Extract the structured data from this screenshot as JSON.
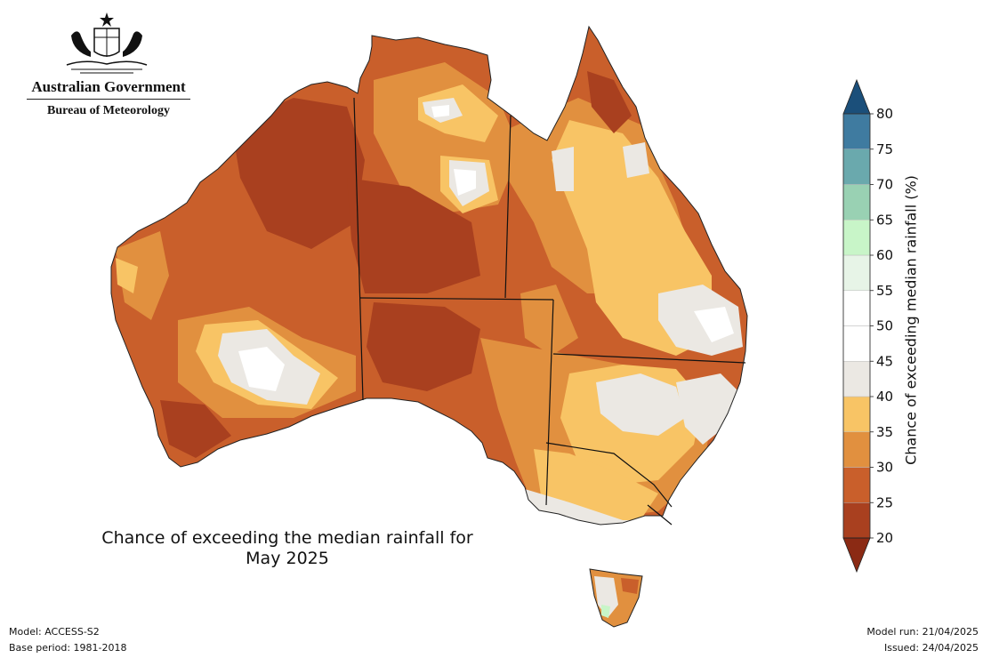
{
  "logo": {
    "line1": "Australian Government",
    "line2": "Bureau of Meteorology"
  },
  "map": {
    "title_line1": "Chance of exceeding the median rainfall for",
    "title_line2": "May 2025",
    "state_borders": true
  },
  "colorbar": {
    "label": "Chance of exceeding median rainfall (%)",
    "ticks": [
      "20",
      "25",
      "30",
      "35",
      "40",
      "45",
      "50",
      "55",
      "60",
      "65",
      "70",
      "75",
      "80"
    ],
    "low_extend_color": "#8b2a14",
    "high_extend_color": "#1b4f7a",
    "bands": [
      {
        "range": "20-25",
        "color": "#a9401f"
      },
      {
        "range": "25-30",
        "color": "#c95f2b"
      },
      {
        "range": "30-35",
        "color": "#e1903f"
      },
      {
        "range": "35-40",
        "color": "#f8c465"
      },
      {
        "range": "40-45",
        "color": "#ebe8e3"
      },
      {
        "range": "45-50",
        "color": "#ffffff"
      },
      {
        "range": "50-55",
        "color": "#ffffff"
      },
      {
        "range": "55-60",
        "color": "#e7f4e7"
      },
      {
        "range": "60-65",
        "color": "#c8f5c8"
      },
      {
        "range": "65-70",
        "color": "#99d1b3"
      },
      {
        "range": "70-75",
        "color": "#6aa9ad"
      },
      {
        "range": "75-80",
        "color": "#3f7ba0"
      }
    ]
  },
  "footer": {
    "model": "Model: ACCESS-S2",
    "base_period": "Base period: 1981-2018",
    "model_run": "Model run: 21/04/2025",
    "issued": "Issued: 24/04/2025"
  }
}
